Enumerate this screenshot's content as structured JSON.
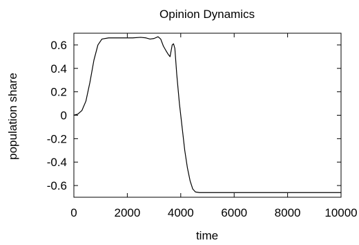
{
  "chart_data": {
    "type": "line",
    "title": "Opinion Dynamics",
    "xlabel": "time",
    "ylabel": "population share",
    "xlim": [
      0,
      10000
    ],
    "ylim": [
      -0.7,
      0.7
    ],
    "x_ticks": [
      0,
      2000,
      4000,
      6000,
      8000,
      10000
    ],
    "y_ticks": [
      0.6,
      0.4,
      0.2,
      0,
      -0.2,
      -0.4,
      -0.6
    ],
    "x_tick_labels": [
      "0",
      "2000",
      "4000",
      "6000",
      "8000",
      "10000"
    ],
    "y_tick_labels": [
      "0.6",
      "0.4",
      "0.2",
      "0",
      "-0.2",
      "-0.4",
      "-0.6"
    ],
    "grid": false,
    "series": [
      {
        "color": "#000000",
        "points": [
          [
            0,
            0.0
          ],
          [
            150,
            0.01
          ],
          [
            300,
            0.04
          ],
          [
            450,
            0.12
          ],
          [
            600,
            0.28
          ],
          [
            750,
            0.47
          ],
          [
            900,
            0.6
          ],
          [
            1050,
            0.65
          ],
          [
            1300,
            0.66
          ],
          [
            1800,
            0.66
          ],
          [
            2200,
            0.66
          ],
          [
            2500,
            0.665
          ],
          [
            2700,
            0.66
          ],
          [
            2850,
            0.65
          ],
          [
            3000,
            0.655
          ],
          [
            3150,
            0.67
          ],
          [
            3250,
            0.65
          ],
          [
            3350,
            0.59
          ],
          [
            3450,
            0.55
          ],
          [
            3530,
            0.52
          ],
          [
            3600,
            0.5
          ],
          [
            3680,
            0.6
          ],
          [
            3730,
            0.61
          ],
          [
            3780,
            0.57
          ],
          [
            3850,
            0.35
          ],
          [
            3950,
            0.1
          ],
          [
            4050,
            -0.1
          ],
          [
            4150,
            -0.3
          ],
          [
            4250,
            -0.45
          ],
          [
            4350,
            -0.56
          ],
          [
            4450,
            -0.63
          ],
          [
            4550,
            -0.655
          ],
          [
            4700,
            -0.66
          ],
          [
            5200,
            -0.66
          ],
          [
            6000,
            -0.66
          ],
          [
            7000,
            -0.66
          ],
          [
            8000,
            -0.66
          ],
          [
            9000,
            -0.66
          ],
          [
            10000,
            -0.66
          ]
        ]
      }
    ]
  }
}
